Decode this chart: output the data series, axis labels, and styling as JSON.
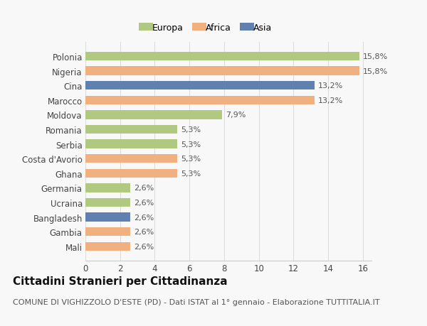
{
  "categories": [
    "Mali",
    "Gambia",
    "Bangladesh",
    "Ucraina",
    "Germania",
    "Ghana",
    "Costa d'Avorio",
    "Serbia",
    "Romania",
    "Moldova",
    "Marocco",
    "Cina",
    "Nigeria",
    "Polonia"
  ],
  "values": [
    2.6,
    2.6,
    2.6,
    2.6,
    2.6,
    5.3,
    5.3,
    5.3,
    5.3,
    7.9,
    13.2,
    13.2,
    15.8,
    15.8
  ],
  "labels": [
    "2,6%",
    "2,6%",
    "2,6%",
    "2,6%",
    "2,6%",
    "5,3%",
    "5,3%",
    "5,3%",
    "5,3%",
    "7,9%",
    "13,2%",
    "13,2%",
    "15,8%",
    "15,8%"
  ],
  "colors": [
    "#f0b080",
    "#f0b080",
    "#6080b0",
    "#b0c880",
    "#b0c880",
    "#f0b080",
    "#f0b080",
    "#b0c880",
    "#b0c880",
    "#b0c880",
    "#f0b080",
    "#6080b0",
    "#f0b080",
    "#b0c880"
  ],
  "legend": [
    {
      "label": "Europa",
      "color": "#b0c880"
    },
    {
      "label": "Africa",
      "color": "#f0b080"
    },
    {
      "label": "Asia",
      "color": "#6080b0"
    }
  ],
  "title": "Cittadini Stranieri per Cittadinanza",
  "subtitle": "COMUNE DI VIGHIZZOLO D'ESTE (PD) - Dati ISTAT al 1° gennaio - Elaborazione TUTTITALIA.IT",
  "xlim": [
    0,
    16.5
  ],
  "xticks": [
    0,
    2,
    4,
    6,
    8,
    10,
    12,
    14,
    16
  ],
  "background_color": "#f8f8f8",
  "bar_height": 0.6,
  "title_fontsize": 11,
  "subtitle_fontsize": 8,
  "label_fontsize": 8,
  "tick_fontsize": 8.5,
  "legend_fontsize": 9
}
